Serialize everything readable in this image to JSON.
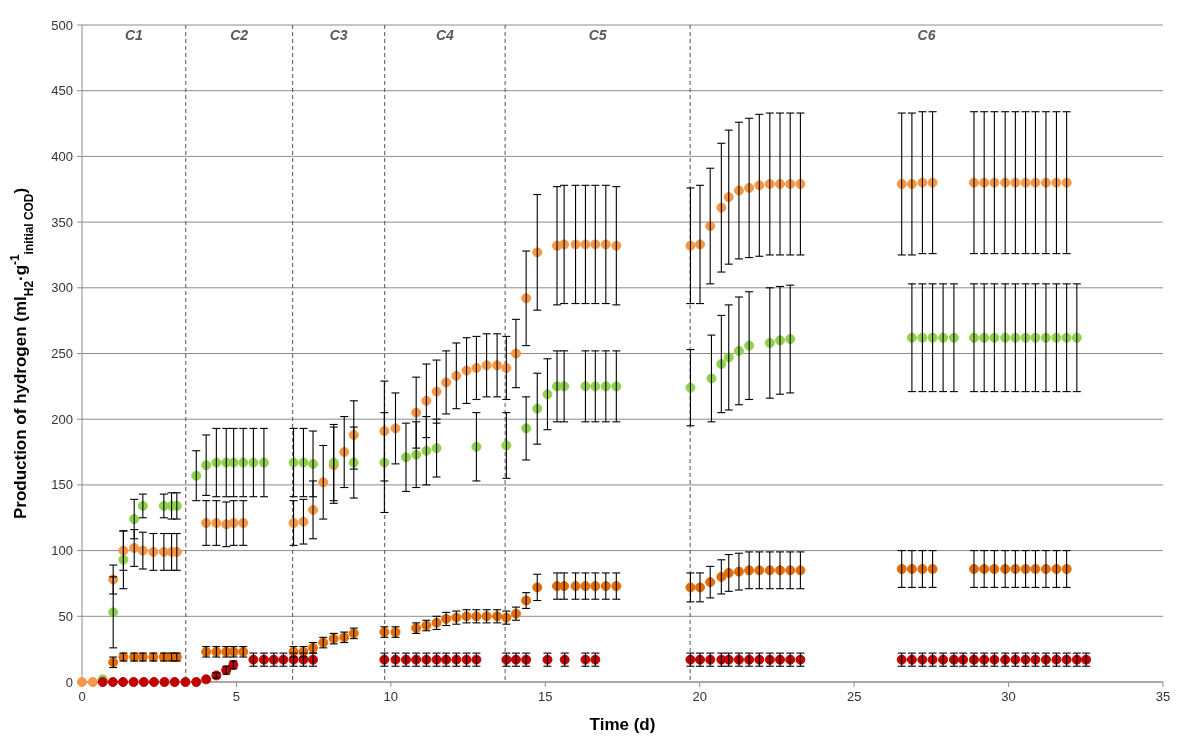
{
  "chart_data": {
    "type": "scatter",
    "xlabel": "Time (d)",
    "ylabel": "Production of hydrogen (ml$_{H2}$·g$^{-1}$$_{initial COD}$)",
    "xlim": [
      0,
      35
    ],
    "xticks": [
      0,
      5,
      10,
      15,
      20,
      25,
      30,
      35
    ],
    "ylim": [
      0,
      500
    ],
    "yticks": [
      0,
      50,
      100,
      150,
      200,
      250,
      300,
      350,
      400,
      450,
      500
    ],
    "grid": "y",
    "marker": "circle",
    "ref_lines": [
      {
        "axis": "x",
        "value": 3.36,
        "line_style": "dashed"
      },
      {
        "axis": "x",
        "value": 6.82,
        "line_style": "dashed"
      },
      {
        "axis": "x",
        "value": 9.8,
        "line_style": "dashed"
      },
      {
        "axis": "x",
        "value": 13.7,
        "line_style": "dashed"
      },
      {
        "axis": "x",
        "value": 19.69,
        "line_style": "dashed"
      }
    ],
    "annotations": [
      "C1",
      "C2",
      "C3",
      "C4",
      "C5",
      "C6"
    ],
    "series": [
      {
        "color": "#f79646",
        "x": [
          0,
          0.35,
          1.01,
          1.34,
          1.69,
          1.97,
          2.31,
          2.65,
          2.9,
          3.07,
          4.02,
          4.35,
          4.67,
          4.91,
          5.22,
          6.85,
          7.17,
          7.48,
          7.81,
          8.15,
          8.49,
          8.8,
          9.79,
          10.15,
          10.82,
          11.15,
          11.48,
          11.79,
          12.12,
          12.45,
          12.77,
          13.1,
          13.44,
          13.74,
          14.05,
          14.38,
          14.74,
          15.38,
          15.61,
          15.98,
          16.3,
          16.62,
          16.96,
          17.3,
          19.7,
          20.01,
          20.34,
          20.7,
          20.94,
          21.27,
          21.6,
          21.93,
          22.27,
          22.6,
          22.93,
          23.26,
          26.54,
          26.87,
          27.21,
          27.54,
          28.88,
          29.21,
          29.54,
          29.89,
          30.22,
          30.55,
          30.87,
          31.21,
          31.55,
          31.88
        ],
        "values": [
          0,
          0,
          78,
          100,
          102,
          100,
          99,
          99,
          99,
          99,
          121,
          121,
          120,
          121,
          121,
          121,
          122,
          131,
          152,
          165,
          175,
          188,
          191,
          193,
          205,
          214,
          221,
          228,
          233,
          237,
          239,
          241,
          241,
          239,
          250,
          292,
          327,
          332,
          333,
          333,
          333,
          333,
          333,
          332,
          332,
          333,
          347,
          361,
          369,
          374,
          376,
          378,
          379,
          379,
          379,
          379,
          379,
          379,
          380,
          380,
          380,
          380,
          380,
          380,
          380,
          380,
          380,
          380,
          380,
          380
        ],
        "errors": [
          null,
          null,
          11,
          15,
          14,
          14,
          14,
          14,
          14,
          14,
          17,
          17,
          17,
          17,
          17,
          17,
          17,
          22,
          28,
          29,
          27,
          26,
          38,
          27,
          27,
          28,
          24,
          24,
          25,
          25,
          24,
          24,
          24,
          24,
          26,
          36,
          44,
          45,
          45,
          45,
          45,
          45,
          45,
          45,
          44,
          45,
          44,
          49,
          51,
          52,
          53,
          54,
          54,
          54,
          54,
          54,
          54,
          54,
          54,
          54,
          54,
          54,
          54,
          54,
          54,
          54,
          54,
          54,
          54,
          54
        ]
      },
      {
        "color": "#92d050",
        "x": [
          0.67,
          1.01,
          1.34,
          1.69,
          1.97,
          2.65,
          2.9,
          3.07,
          3.7,
          4.02,
          4.35,
          4.67,
          4.91,
          5.22,
          5.55,
          5.89,
          6.85,
          7.17,
          7.48,
          8.15,
          8.8,
          9.79,
          10.49,
          10.82,
          11.15,
          11.48,
          12.77,
          13.74,
          14.38,
          14.74,
          15.07,
          15.38,
          15.61,
          16.3,
          16.62,
          16.96,
          17.3,
          19.7,
          20.38,
          20.7,
          20.94,
          21.27,
          21.6,
          22.27,
          22.6,
          22.93,
          26.87,
          27.21,
          27.54,
          27.88,
          28.23,
          28.88,
          29.21,
          29.54,
          29.89,
          30.22,
          30.55,
          30.87,
          31.21,
          31.55,
          31.88,
          32.21
        ],
        "values": [
          2,
          53,
          93,
          124,
          134,
          134,
          134,
          134,
          157,
          165,
          167,
          167,
          167,
          167,
          167,
          167,
          167,
          167,
          166,
          167,
          167,
          167,
          171,
          173,
          176,
          178,
          179,
          180,
          193,
          208,
          219,
          225,
          225,
          225,
          225,
          225,
          225,
          224,
          231,
          242,
          247,
          252,
          256,
          258,
          260,
          261,
          262,
          262,
          262,
          262,
          262,
          262,
          262,
          262,
          262,
          262,
          262,
          262,
          262,
          262,
          262,
          262
        ],
        "errors": [
          null,
          27,
          22,
          15,
          9,
          9,
          10,
          10,
          19,
          23,
          26,
          26,
          26,
          26,
          26,
          26,
          26,
          26,
          25,
          29,
          27,
          38,
          26,
          25,
          26,
          22,
          26,
          25,
          24,
          27,
          27,
          27,
          27,
          27,
          27,
          27,
          27,
          29,
          33,
          37,
          40,
          41,
          41,
          42,
          41,
          41,
          41,
          41,
          41,
          41,
          41,
          41,
          41,
          41,
          41,
          41,
          41,
          41,
          41,
          41,
          41,
          41
        ]
      },
      {
        "color": "#e36c09",
        "x": [
          1.01,
          1.34,
          1.69,
          1.97,
          2.31,
          2.65,
          2.9,
          3.07,
          4.02,
          4.35,
          4.67,
          4.91,
          5.22,
          6.85,
          7.17,
          7.48,
          7.81,
          8.15,
          8.49,
          8.8,
          9.79,
          10.15,
          10.82,
          11.15,
          11.48,
          11.79,
          12.12,
          12.45,
          12.77,
          13.1,
          13.44,
          13.74,
          14.05,
          14.38,
          14.74,
          15.38,
          15.61,
          15.98,
          16.3,
          16.62,
          16.96,
          17.3,
          19.7,
          20.01,
          20.34,
          20.7,
          20.94,
          21.27,
          21.6,
          21.93,
          22.27,
          22.6,
          22.93,
          23.26,
          26.54,
          26.87,
          27.21,
          27.54,
          28.88,
          29.21,
          29.54,
          29.89,
          30.22,
          30.55,
          30.87,
          31.21,
          31.55,
          31.88
        ],
        "values": [
          15,
          19,
          19,
          19,
          19,
          19,
          19,
          19,
          23,
          23,
          23,
          23,
          23,
          23,
          23,
          26,
          30,
          33,
          34,
          37,
          38,
          38,
          41,
          43,
          45,
          48,
          49,
          50,
          50,
          50,
          50,
          49,
          52,
          62,
          72,
          73,
          73,
          73,
          73,
          73,
          73,
          73,
          72,
          72,
          76,
          80,
          83,
          84,
          85,
          85,
          85,
          85,
          85,
          85,
          86,
          86,
          86,
          86,
          86,
          86,
          86,
          86,
          86,
          86,
          86,
          86,
          86,
          86
        ],
        "errors": [
          4,
          3,
          3,
          3,
          3,
          3,
          3,
          3,
          4,
          4,
          4,
          4,
          4,
          4,
          4,
          4,
          4,
          4,
          4,
          4,
          4,
          4,
          4,
          4,
          5,
          5,
          5,
          5,
          5,
          5,
          5,
          5,
          5,
          6,
          10,
          10,
          10,
          10,
          10,
          10,
          10,
          10,
          11,
          11,
          12,
          13,
          14,
          14,
          14,
          14,
          14,
          14,
          14,
          14,
          14,
          14,
          14,
          14,
          14,
          14,
          14,
          14,
          14,
          14,
          14,
          14,
          14,
          14
        ]
      },
      {
        "color": "#c00000",
        "x": [
          0.67,
          1.0,
          1.33,
          1.67,
          2.0,
          2.33,
          2.67,
          3.0,
          3.35,
          3.7,
          4.02,
          4.35,
          4.67,
          4.9,
          5.55,
          5.89,
          6.21,
          6.52,
          6.85,
          7.17,
          7.48,
          9.79,
          10.15,
          10.49,
          10.82,
          11.15,
          11.48,
          11.79,
          12.12,
          12.45,
          12.77,
          13.74,
          14.05,
          14.38,
          15.07,
          15.63,
          16.3,
          16.62,
          19.7,
          20.01,
          20.34,
          20.7,
          20.94,
          21.27,
          21.6,
          21.93,
          22.27,
          22.6,
          22.93,
          23.26,
          26.54,
          26.87,
          27.21,
          27.54,
          27.88,
          28.23,
          28.53,
          28.88,
          29.21,
          29.54,
          29.89,
          30.22,
          30.55,
          30.87,
          31.21,
          31.55,
          31.88,
          32.21,
          32.51
        ],
        "values": [
          0,
          0,
          0,
          0,
          0,
          0,
          0,
          0,
          0,
          0,
          2,
          5,
          9,
          13,
          17,
          17,
          17,
          17,
          17,
          17,
          17,
          17,
          17,
          17,
          17,
          17,
          17,
          17,
          17,
          17,
          17,
          17,
          17,
          17,
          17,
          17,
          17,
          17,
          17,
          17,
          17,
          17,
          17,
          17,
          17,
          17,
          17,
          17,
          17,
          17,
          17,
          17,
          17,
          17,
          17,
          17,
          17,
          17,
          17,
          17,
          17,
          17,
          17,
          17,
          17,
          17,
          17,
          17,
          17
        ],
        "errors": [
          null,
          null,
          null,
          null,
          null,
          null,
          null,
          null,
          null,
          null,
          null,
          2,
          3,
          3,
          5,
          5,
          5,
          5,
          5,
          5,
          5,
          5,
          5,
          5,
          5,
          5,
          5,
          5,
          5,
          5,
          5,
          5,
          5,
          5,
          5,
          5,
          5,
          5,
          5,
          5,
          5,
          5,
          5,
          5,
          5,
          5,
          5,
          5,
          5,
          5,
          5,
          5,
          5,
          5,
          5,
          5,
          5,
          5,
          5,
          5,
          5,
          5,
          5,
          5,
          5,
          5,
          5,
          5,
          5
        ]
      }
    ]
  }
}
